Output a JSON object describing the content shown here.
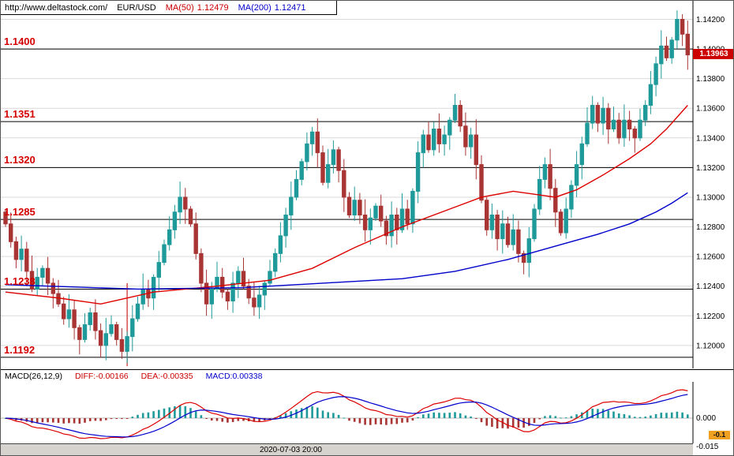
{
  "header": {
    "url": "http://www.deltastock.com/",
    "symbol": "EUR/USD",
    "ma50_label": "MA(50)",
    "ma50_value": "1.12479",
    "ma200_label": "MA(200)",
    "ma200_value": "1.12471"
  },
  "levels": [
    {
      "label": "1.1400",
      "price": 1.14
    },
    {
      "label": "1.1351",
      "price": 1.1351
    },
    {
      "label": "1.1320",
      "price": 1.132
    },
    {
      "label": "1.1285",
      "price": 1.1285
    },
    {
      "label": "1.1238",
      "price": 1.1238
    },
    {
      "label": "1.1192",
      "price": 1.1192
    }
  ],
  "price_axis": {
    "ticks": [
      {
        "label": "1.14200",
        "price": 1.142
      },
      {
        "label": "1.14000",
        "price": 1.14
      },
      {
        "label": "1.13800",
        "price": 1.138
      },
      {
        "label": "1.13600",
        "price": 1.136
      },
      {
        "label": "1.13400",
        "price": 1.134
      },
      {
        "label": "1.13200",
        "price": 1.132
      },
      {
        "label": "1.13000",
        "price": 1.13
      },
      {
        "label": "1.12800",
        "price": 1.128
      },
      {
        "label": "1.12600",
        "price": 1.126
      },
      {
        "label": "1.12400",
        "price": 1.124
      },
      {
        "label": "1.12200",
        "price": 1.122
      },
      {
        "label": "1.12000",
        "price": 1.12
      }
    ],
    "last_price": "1.13963",
    "last_price_value": 1.13963
  },
  "macd_header": {
    "title": "MACD(26,12,9)",
    "diff": "DIFF:-0.00166",
    "dea": "DEA:-0.00335",
    "macd": "MACD:0.00338"
  },
  "macd_axis": {
    "zero_label": "0.000",
    "min_label": "-0.015",
    "badge": "-0.1"
  },
  "bottom_axis": {
    "date_label": "2020-07-03 20:00"
  },
  "colors": {
    "up": "#1f9a9a",
    "down": "#a83434",
    "ma50": "#dd0000",
    "ma200": "#0000cc",
    "grid": "#d9d9d9",
    "level_line": "#000000",
    "level_label": "#d40000",
    "badge_bg": "#cc0000",
    "macd_badge_bg": "#f0a020"
  },
  "chart_data": {
    "type": "candlestick",
    "title": "EUR/USD",
    "ylim": [
      1.11845,
      1.14325
    ],
    "y_ticks": [
      1.142,
      1.14,
      1.138,
      1.136,
      1.134,
      1.132,
      1.13,
      1.128,
      1.126,
      1.124,
      1.122,
      1.12
    ],
    "x_ticks": [
      "2020-07-03 20:00"
    ],
    "support_resistance_levels": [
      1.14,
      1.1351,
      1.132,
      1.1285,
      1.1238,
      1.1192
    ],
    "last_price": 1.13963,
    "closes": [
      1.1282,
      1.127,
      1.1258,
      1.1265,
      1.125,
      1.1238,
      1.1246,
      1.1252,
      1.1242,
      1.1235,
      1.1228,
      1.1218,
      1.1224,
      1.1212,
      1.1204,
      1.1214,
      1.1222,
      1.121,
      1.12,
      1.1208,
      1.1214,
      1.1204,
      1.1196,
      1.1206,
      1.1218,
      1.1228,
      1.1238,
      1.1232,
      1.1246,
      1.1256,
      1.1268,
      1.1278,
      1.129,
      1.13,
      1.1292,
      1.1282,
      1.1262,
      1.1242,
      1.1228,
      1.1238,
      1.1246,
      1.1236,
      1.123,
      1.1242,
      1.125,
      1.124,
      1.1232,
      1.1226,
      1.1234,
      1.1242,
      1.125,
      1.1262,
      1.1274,
      1.1288,
      1.13,
      1.1312,
      1.1324,
      1.1336,
      1.1344,
      1.133,
      1.131,
      1.1322,
      1.1332,
      1.1318,
      1.13,
      1.1288,
      1.1298,
      1.1288,
      1.1278,
      1.1286,
      1.1294,
      1.1284,
      1.1274,
      1.1288,
      1.1278,
      1.1292,
      1.1282,
      1.1304,
      1.133,
      1.1342,
      1.1332,
      1.1346,
      1.1336,
      1.1342,
      1.1352,
      1.1362,
      1.1348,
      1.1334,
      1.1342,
      1.1322,
      1.1298,
      1.1278,
      1.1288,
      1.1272,
      1.1282,
      1.1268,
      1.1278,
      1.1262,
      1.1256,
      1.1272,
      1.1292,
      1.1312,
      1.1322,
      1.1306,
      1.129,
      1.1276,
      1.1292,
      1.1308,
      1.1322,
      1.1336,
      1.135,
      1.1362,
      1.135,
      1.136,
      1.1346,
      1.1352,
      1.134,
      1.1352,
      1.1346,
      1.134,
      1.1352,
      1.1362,
      1.1376,
      1.139,
      1.1402,
      1.1394,
      1.1406,
      1.142,
      1.141,
      1.1396
    ],
    "overlays": [
      {
        "name": "MA(50)",
        "color": "#dd0000",
        "points": [
          [
            0,
            1.1236
          ],
          [
            10,
            1.1232
          ],
          [
            18,
            1.1228
          ],
          [
            28,
            1.1236
          ],
          [
            40,
            1.124
          ],
          [
            50,
            1.1244
          ],
          [
            58,
            1.1252
          ],
          [
            66,
            1.1266
          ],
          [
            75,
            1.128
          ],
          [
            84,
            1.1292
          ],
          [
            90,
            1.13
          ],
          [
            96,
            1.1304
          ],
          [
            100,
            1.1302
          ],
          [
            104,
            1.13
          ],
          [
            108,
            1.1305
          ],
          [
            113,
            1.1315
          ],
          [
            118,
            1.1326
          ],
          [
            122,
            1.1336
          ],
          [
            125,
            1.1346
          ],
          [
            127,
            1.1354
          ],
          [
            129,
            1.1362
          ]
        ]
      },
      {
        "name": "MA(200)",
        "color": "#0000cc",
        "points": [
          [
            0,
            1.1241
          ],
          [
            25,
            1.1238
          ],
          [
            45,
            1.1239
          ],
          [
            60,
            1.1242
          ],
          [
            75,
            1.1245
          ],
          [
            85,
            1.125
          ],
          [
            95,
            1.1258
          ],
          [
            105,
            1.1268
          ],
          [
            112,
            1.1275
          ],
          [
            118,
            1.1282
          ],
          [
            123,
            1.129
          ],
          [
            126,
            1.1296
          ],
          [
            129,
            1.1303
          ]
        ]
      }
    ],
    "indicator": {
      "name": "MACD",
      "params": [
        26,
        12,
        9
      ],
      "diff": -0.00166,
      "dea": -0.00335,
      "macd": 0.00338,
      "scale_labels": [
        "0.000",
        "-0.015"
      ]
    },
    "annotations": [
      {
        "type": "vline",
        "index": 23,
        "from_price": 1.1242,
        "to_price": 1.1186,
        "color": "#cc2222"
      }
    ]
  }
}
